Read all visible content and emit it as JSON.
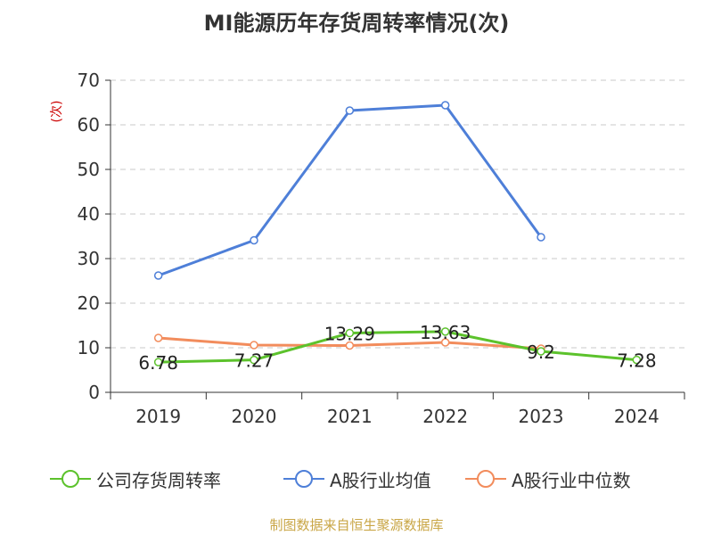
{
  "title": "MI能源历年存货周转率情况(次)",
  "source": "制图数据来自恒生聚源数据库",
  "chart_data": {
    "type": "line",
    "title": "MI能源历年存货周转率情况(次)",
    "ylabel": "(次)",
    "xlabel": "",
    "categories": [
      "2019",
      "2020",
      "2021",
      "2022",
      "2023",
      "2024"
    ],
    "ylim": [
      0,
      70
    ],
    "yticks": [
      0,
      10,
      20,
      30,
      40,
      50,
      60,
      70
    ],
    "grid": true,
    "legend_position": "bottom",
    "series": [
      {
        "name": "公司存货周转率",
        "color": "#5cc22c",
        "values": [
          6.78,
          7.27,
          13.29,
          13.63,
          9.2,
          7.28
        ],
        "data_labels": [
          "6.78",
          "7.27",
          "13.29",
          "13.63",
          "9.2",
          "7.28"
        ]
      },
      {
        "name": "A股行业均值",
        "color": "#4e7fd8",
        "values": [
          26.2,
          34.1,
          63.2,
          64.4,
          34.8,
          null
        ]
      },
      {
        "name": "A股行业中位数",
        "color": "#f28c5c",
        "values": [
          12.2,
          10.6,
          10.5,
          11.2,
          9.8,
          null
        ]
      }
    ]
  }
}
